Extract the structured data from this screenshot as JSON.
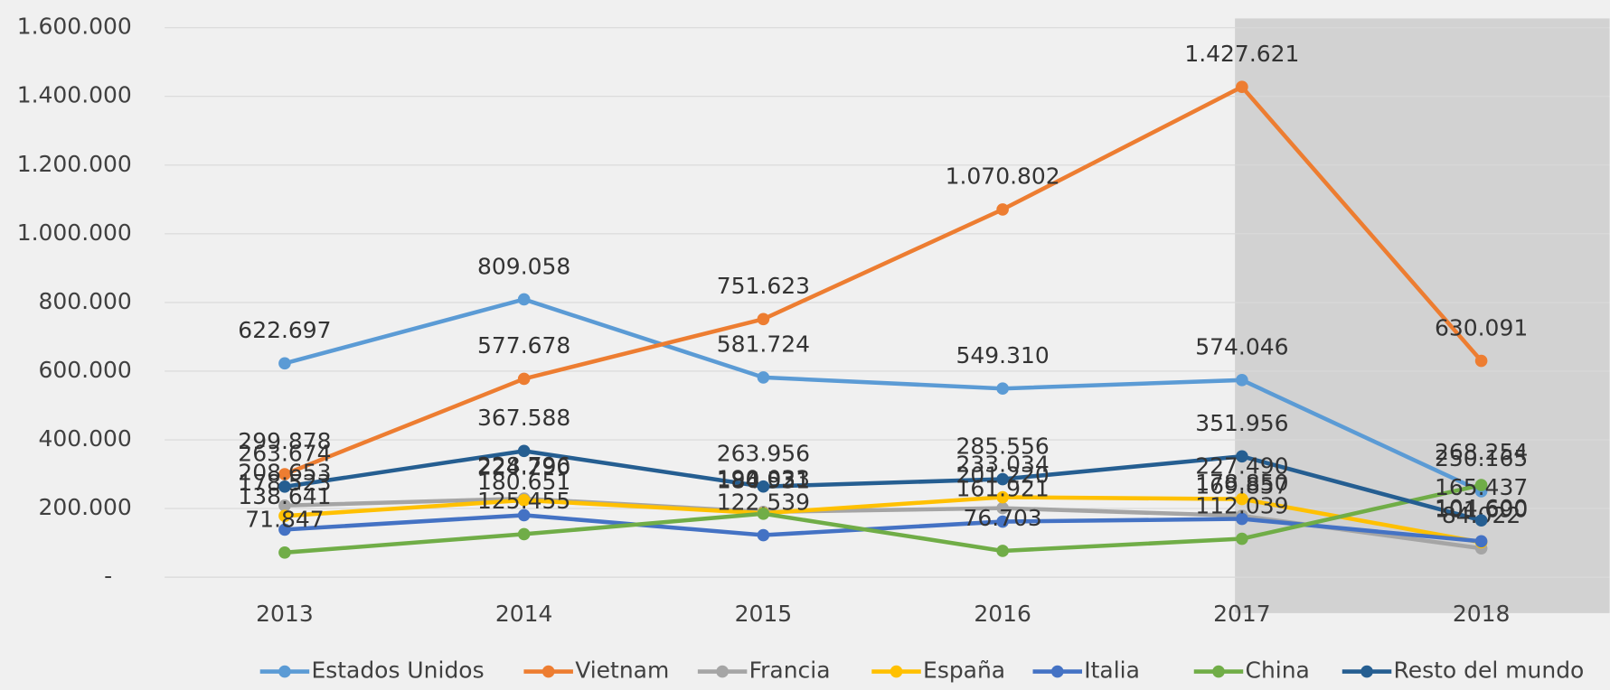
{
  "chart_data": {
    "type": "line",
    "categories": [
      "2013",
      "2014",
      "2015",
      "2016",
      "2017",
      "2018"
    ],
    "ylim": [
      0,
      1600000
    ],
    "yticks": [
      {
        "value": 0,
        "label": "-"
      },
      {
        "value": 200000,
        "label": "200.000"
      },
      {
        "value": 400000,
        "label": "400.000"
      },
      {
        "value": 600000,
        "label": "600.000"
      },
      {
        "value": 800000,
        "label": "800.000"
      },
      {
        "value": 1000000,
        "label": "1.000.000"
      },
      {
        "value": 1200000,
        "label": "1.200.000"
      },
      {
        "value": 1400000,
        "label": "1.400.000"
      },
      {
        "value": 1600000,
        "label": "1.600.000"
      }
    ],
    "grid": true,
    "legend": "bottom",
    "series": [
      {
        "name": "Estados Unidos",
        "color": "#5b9bd5",
        "values": [
          622697,
          809058,
          581724,
          549310,
          574046,
          250165
        ],
        "value_labels": [
          "622.697",
          "809.058",
          "581.724",
          "549.310",
          "574.046",
          "250.165"
        ]
      },
      {
        "name": "Vietnam",
        "color": "#ed7d31",
        "values": [
          299878,
          577678,
          751623,
          1070802,
          1427621,
          630091
        ],
        "value_labels": [
          "299.878",
          "577.678",
          "751.623",
          "1.070.802",
          "1.427.621",
          "630.091"
        ]
      },
      {
        "name": "Francia",
        "color": "#a5a5a5",
        "values": [
          208653,
          228796,
          190033,
          201220,
          178850,
          84022
        ],
        "value_labels": [
          "208.653",
          "228.796",
          "190.033",
          "201.220",
          "178.850",
          "84.022"
        ]
      },
      {
        "name": "España",
        "color": "#ffc000",
        "values": [
          178523,
          224290,
          186521,
          233034,
          227490,
          101690
        ],
        "value_labels": [
          "178.523",
          "224.290",
          "186.521",
          "233.034",
          "227.490",
          "101.690"
        ]
      },
      {
        "name": "Italia",
        "color": "#4472c4",
        "values": [
          138641,
          180651,
          122539,
          161921,
          169857,
          104600
        ],
        "value_labels": [
          "138.641",
          "180.651",
          "122.539",
          "161.921",
          "169.857",
          "104.600"
        ]
      },
      {
        "name": "China",
        "color": "#70ad47",
        "values": [
          71847,
          125455,
          184931,
          76703,
          112039,
          268254
        ],
        "value_labels": [
          "71.847",
          "125.455",
          "184.931",
          "76.703",
          "112.039",
          "268.254"
        ]
      },
      {
        "name": "Resto del mundo",
        "color": "#255e91",
        "values": [
          263674,
          367588,
          263956,
          285556,
          351956,
          165437
        ],
        "value_labels": [
          "263.674",
          "367.588",
          "263.956",
          "285.556",
          "351.956",
          "165.437"
        ]
      }
    ]
  }
}
